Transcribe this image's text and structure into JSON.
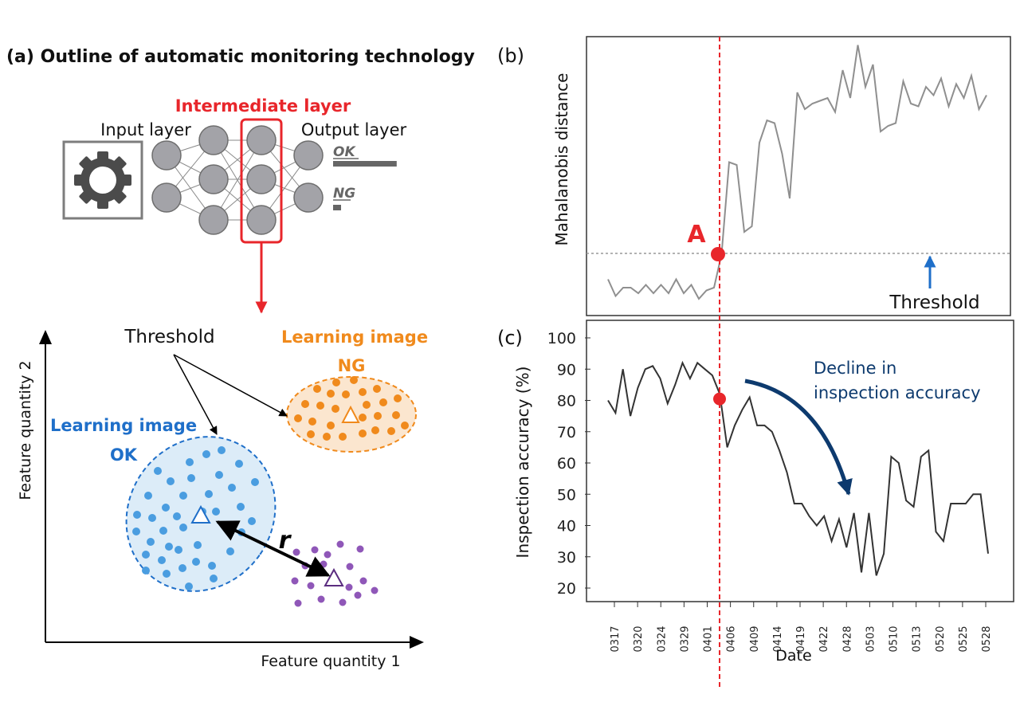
{
  "panel_a": {
    "title": "(a) Outline of automatic monitoring technology",
    "input_layer_label": "Input layer",
    "intermediate_layer_label": "Intermediate layer",
    "output_layer_label": "Output layer",
    "ok_label": "OK",
    "ng_label": "NG",
    "ok_score": 0.95,
    "ng_score": 0.1,
    "threshold_label": "Threshold",
    "learning_ok_title": "Learning image",
    "learning_ok_sub": "OK",
    "learning_ng_title": "Learning image",
    "learning_ng_sub": "NG",
    "distance_label": "r",
    "x_axis_label": "Feature quantity 1",
    "y_axis_label": "Feature quantity 2",
    "colors": {
      "red": "#e8262b",
      "ok_blue": "#1f6fc9",
      "ok_dot": "#4a9de0",
      "ng_orange": "#f08a1c",
      "purple": "#8f57b8",
      "node_gray": "#a3a3a8"
    },
    "icons": [
      "gear-icon"
    ]
  },
  "panel_b": {
    "label": "(b)",
    "ylabel": "Mahalanobis distance",
    "point_label": "A",
    "threshold_label": "Threshold"
  },
  "panel_c": {
    "label": "(c)",
    "ylabel": "Inspection accuracy (%)",
    "xlabel": "Date",
    "annotation": [
      "Decline in",
      "inspection accuracy"
    ]
  },
  "chart_data": [
    {
      "type": "line",
      "panel": "b",
      "title": "",
      "ylabel": "Mahalanobis distance",
      "yaxis_values_shown": false,
      "ylim": [
        0,
        100
      ],
      "threshold": 18,
      "marker_index": 19,
      "marker_label": "A",
      "series": [
        {
          "values": [
            13,
            7,
            10,
            10,
            8,
            11,
            8,
            11,
            8,
            13,
            8,
            11,
            6,
            9,
            10,
            22,
            55,
            54,
            30,
            32,
            62,
            70,
            69,
            58,
            42,
            80,
            74,
            76,
            77,
            78,
            73,
            88,
            78,
            97,
            82,
            90,
            66,
            68,
            69,
            84,
            76,
            75,
            82,
            79,
            85,
            75,
            83,
            78,
            86,
            74,
            79
          ]
        }
      ]
    },
    {
      "type": "line",
      "panel": "c",
      "title": "",
      "xlabel": "Date",
      "ylabel": "Inspection accuracy (%)",
      "ylim": [
        20,
        100
      ],
      "yticks": [
        20,
        30,
        40,
        50,
        60,
        70,
        80,
        90,
        100
      ],
      "x_tick_labels": [
        "0317",
        "0320",
        "0324",
        "0329",
        "0401",
        "0406",
        "0409",
        "0414",
        "0419",
        "0422",
        "0428",
        "0503",
        "0510",
        "0513",
        "0520",
        "0525",
        "0528"
      ],
      "marker_index": 15,
      "series": [
        {
          "values": [
            80,
            76,
            90,
            75,
            84,
            90,
            91,
            87,
            79,
            85,
            92,
            87,
            92,
            90,
            88,
            82,
            65,
            72,
            77,
            81,
            72,
            72,
            70,
            64,
            57,
            47,
            47,
            43,
            40,
            43,
            35,
            42,
            33,
            44,
            25,
            44,
            24,
            31,
            62,
            60,
            48,
            46,
            62,
            64,
            38,
            35,
            47,
            47,
            47,
            50,
            50,
            31
          ]
        }
      ]
    }
  ]
}
